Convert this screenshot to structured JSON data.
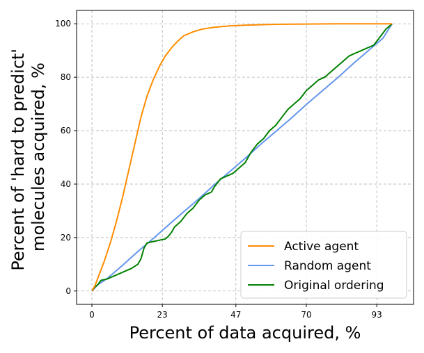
{
  "chart_data": {
    "type": "line",
    "title": "",
    "xlabel": "Percent of data acquired, %",
    "ylabel_lines": [
      "Percent of 'hard to predict'",
      "molecules acquired, %"
    ],
    "xlim": [
      -5,
      105
    ],
    "ylim": [
      -5,
      105
    ],
    "xticks": [
      0,
      23,
      47,
      70,
      93
    ],
    "yticks": [
      0,
      20,
      40,
      60,
      80,
      100
    ],
    "grid": true,
    "legend_position": "lower-right",
    "series": [
      {
        "name": "Active agent",
        "color": "#ff8c00",
        "points": [
          [
            0,
            0
          ],
          [
            1,
            2
          ],
          [
            2,
            5
          ],
          [
            4,
            11
          ],
          [
            6,
            18
          ],
          [
            8,
            26
          ],
          [
            10,
            35
          ],
          [
            12,
            45
          ],
          [
            14,
            55
          ],
          [
            16,
            65
          ],
          [
            18,
            73
          ],
          [
            20,
            79
          ],
          [
            22,
            84
          ],
          [
            24,
            88
          ],
          [
            26,
            91
          ],
          [
            28,
            93.5
          ],
          [
            30,
            95.5
          ],
          [
            33,
            97
          ],
          [
            36,
            98
          ],
          [
            40,
            98.7
          ],
          [
            45,
            99.2
          ],
          [
            50,
            99.5
          ],
          [
            60,
            99.8
          ],
          [
            70,
            99.9
          ],
          [
            80,
            100
          ],
          [
            90,
            100
          ],
          [
            98,
            100
          ]
        ]
      },
      {
        "name": "Random agent",
        "color": "#6495ed",
        "points": [
          [
            0,
            0
          ],
          [
            2,
            2.4
          ],
          [
            5,
            4.7
          ],
          [
            10,
            9.6
          ],
          [
            15,
            14.8
          ],
          [
            20,
            19.6
          ],
          [
            25,
            24.7
          ],
          [
            30,
            29.7
          ],
          [
            35,
            34.6
          ],
          [
            40,
            39.8
          ],
          [
            45,
            44.7
          ],
          [
            50,
            49.6
          ],
          [
            55,
            54.8
          ],
          [
            60,
            59.7
          ],
          [
            65,
            64.6
          ],
          [
            70,
            69.8
          ],
          [
            75,
            74.7
          ],
          [
            80,
            79.6
          ],
          [
            85,
            84.8
          ],
          [
            90,
            89.7
          ],
          [
            95,
            94.6
          ],
          [
            98,
            100
          ]
        ]
      },
      {
        "name": "Original ordering",
        "color": "#008000",
        "points": [
          [
            0,
            0
          ],
          [
            1,
            1.5
          ],
          [
            2,
            2.5
          ],
          [
            3,
            4
          ],
          [
            5,
            4.5
          ],
          [
            7,
            5.5
          ],
          [
            9,
            6.5
          ],
          [
            11,
            7.5
          ],
          [
            13,
            8.5
          ],
          [
            15,
            10
          ],
          [
            16,
            12
          ],
          [
            17,
            16
          ],
          [
            18,
            18
          ],
          [
            20,
            18.5
          ],
          [
            22,
            19
          ],
          [
            24,
            19.5
          ],
          [
            25,
            20.5
          ],
          [
            26,
            22
          ],
          [
            27,
            24
          ],
          [
            29,
            26
          ],
          [
            31,
            29
          ],
          [
            33,
            31
          ],
          [
            35,
            34
          ],
          [
            37,
            36
          ],
          [
            39,
            37
          ],
          [
            40,
            39
          ],
          [
            42,
            42
          ],
          [
            44,
            43
          ],
          [
            46,
            44
          ],
          [
            48,
            46
          ],
          [
            50,
            48
          ],
          [
            52,
            52
          ],
          [
            54,
            55
          ],
          [
            56,
            57
          ],
          [
            58,
            60
          ],
          [
            60,
            62
          ],
          [
            62,
            65
          ],
          [
            64,
            68
          ],
          [
            66,
            70
          ],
          [
            68,
            72
          ],
          [
            70,
            75
          ],
          [
            72,
            77
          ],
          [
            74,
            79
          ],
          [
            76,
            80
          ],
          [
            78,
            82
          ],
          [
            80,
            84
          ],
          [
            82,
            86
          ],
          [
            84,
            88
          ],
          [
            86,
            89
          ],
          [
            88,
            90
          ],
          [
            90,
            91
          ],
          [
            92,
            92
          ],
          [
            94,
            95
          ],
          [
            96,
            98
          ],
          [
            98,
            100
          ]
        ]
      }
    ]
  }
}
